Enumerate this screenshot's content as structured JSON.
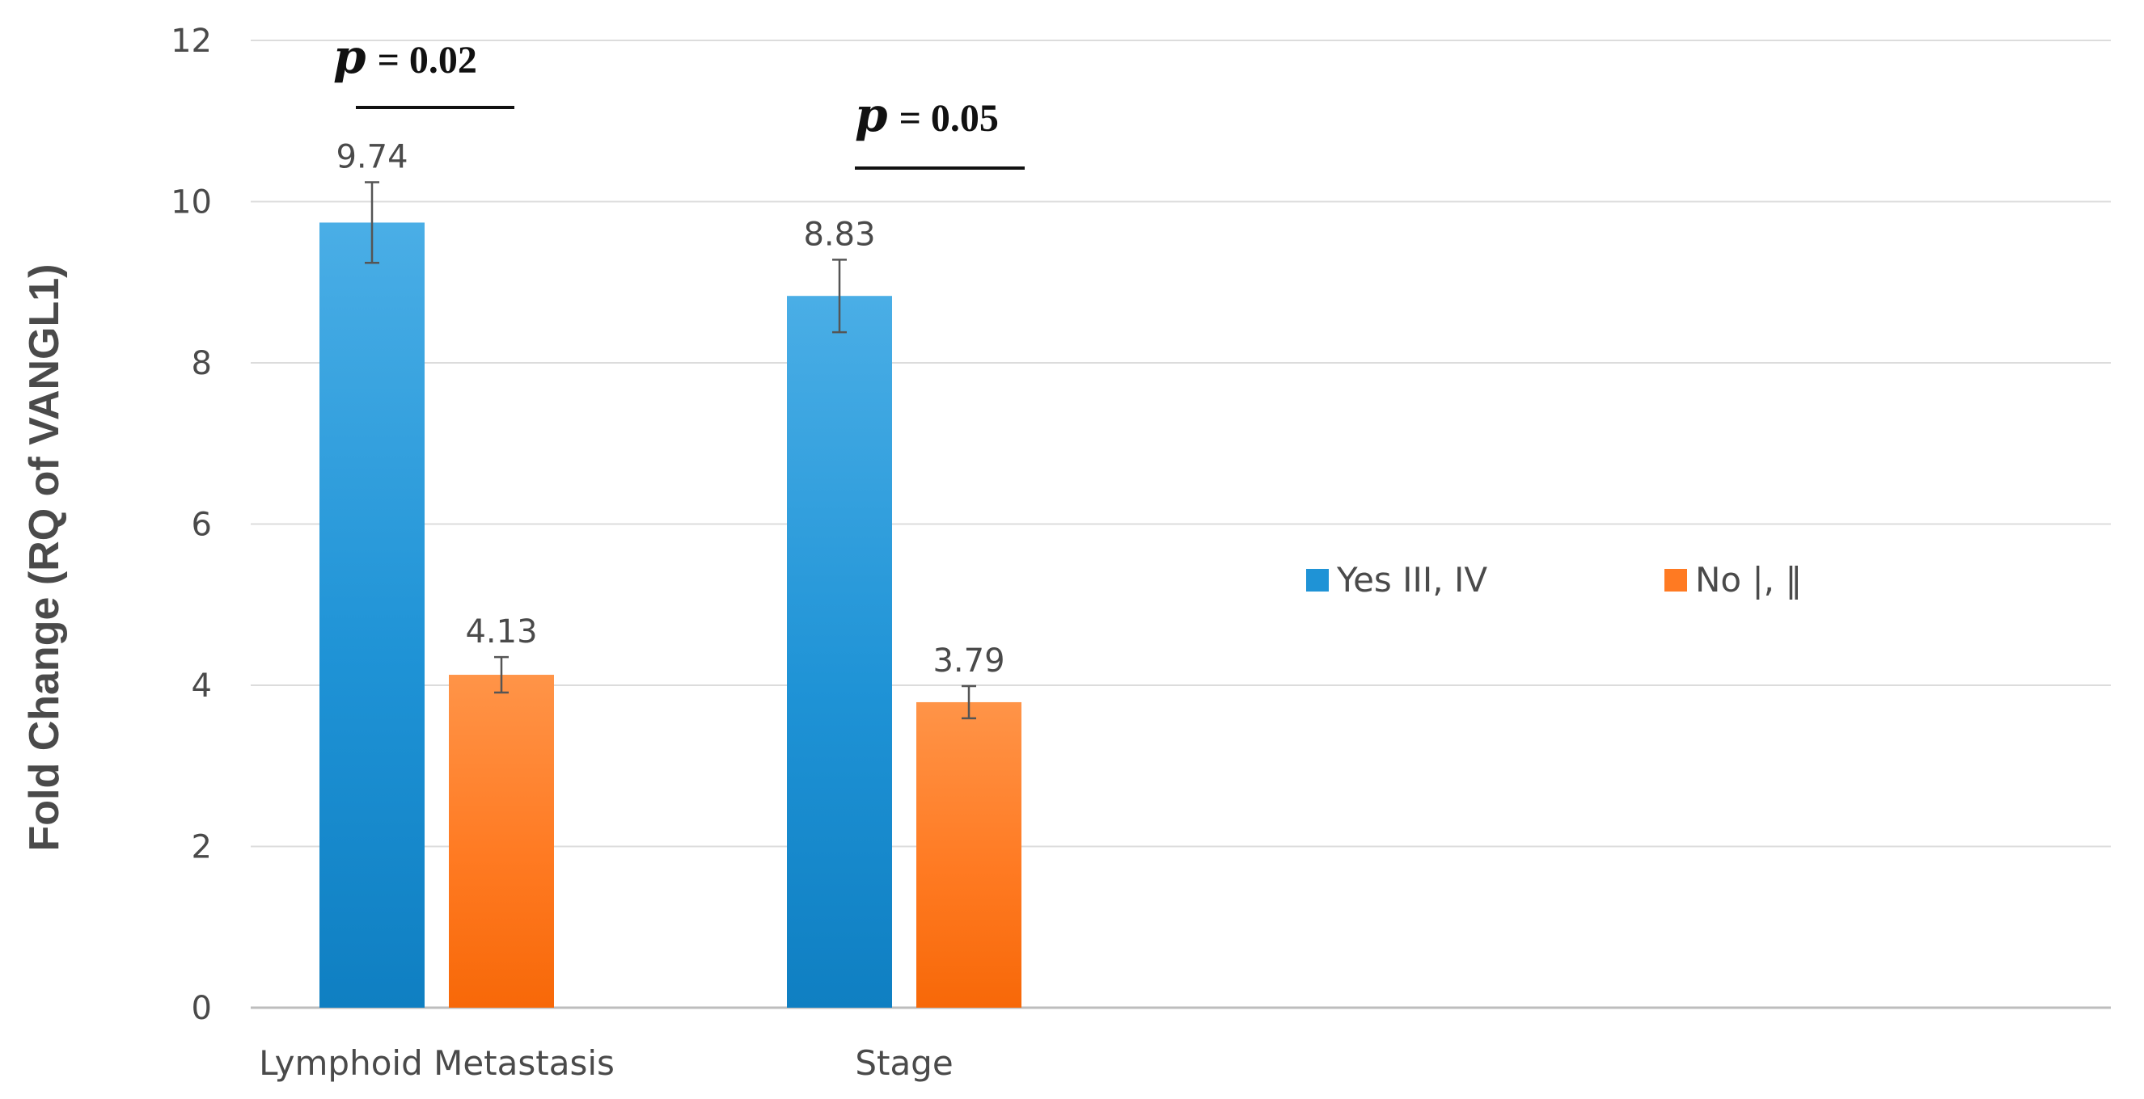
{
  "chart_data": {
    "type": "bar",
    "title": "",
    "xlabel": "",
    "ylabel": "Fold Change (RQ of VANGL1)",
    "ylim": [
      0,
      12
    ],
    "yticks": [
      0,
      2,
      4,
      6,
      8,
      10,
      12
    ],
    "grid": true,
    "categories": [
      "Lymphoid Metastasis",
      "Stage"
    ],
    "series": [
      {
        "name": "Yes",
        "legend_label": "Yes   III, IV",
        "color": "#1f93d6",
        "values": [
          9.74,
          8.83
        ],
        "data_labels": [
          "9.74",
          "8.83"
        ],
        "error": [
          0.5,
          0.45
        ]
      },
      {
        "name": "No",
        "legend_label": "No   |, ‖",
        "color": "#ff7a22",
        "values": [
          4.13,
          3.79
        ],
        "data_labels": [
          "4.13",
          "3.79"
        ],
        "error": [
          0.22,
          0.2
        ]
      }
    ],
    "legend_position": "right",
    "annotations": [
      {
        "category": "Lymphoid Metastasis",
        "p_symbol": "p",
        "p_text": "= 0.02"
      },
      {
        "category": "Stage",
        "p_symbol": "p",
        "p_text": "= 0.05"
      }
    ]
  }
}
